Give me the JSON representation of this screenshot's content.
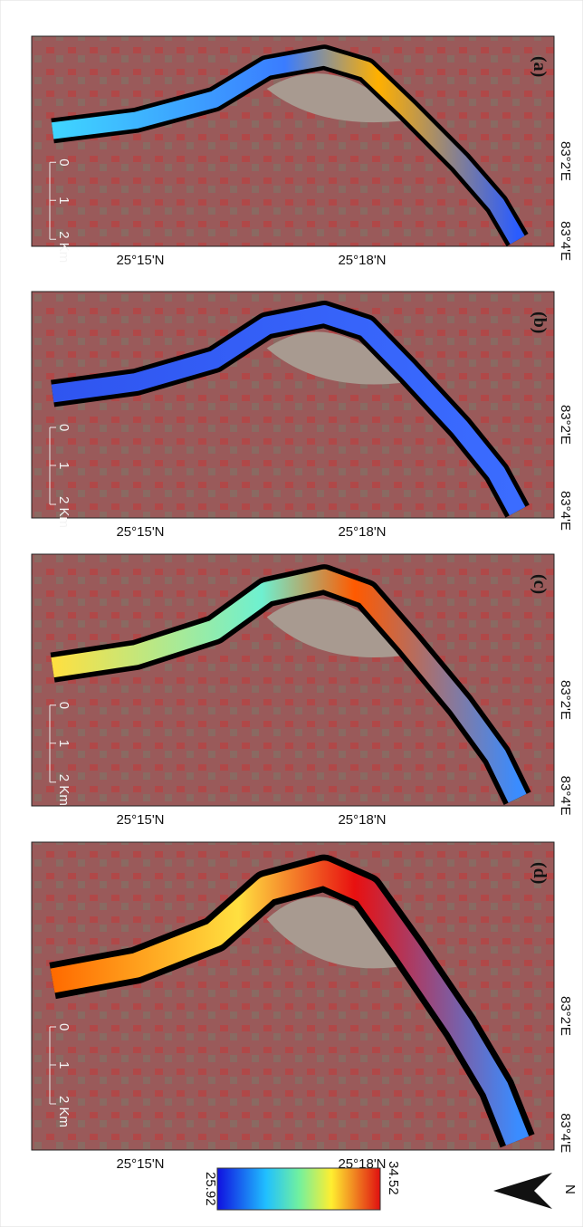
{
  "panels": [
    {
      "label": "(a)"
    },
    {
      "label": "(b)"
    },
    {
      "label": "(c)"
    },
    {
      "label": "(d)"
    }
  ],
  "latitude_labels": [
    "25°15'N",
    "25°18'N"
  ],
  "longitude_labels": [
    "83°2'E",
    "83°4'E"
  ],
  "scale_bar": [
    "0",
    "1",
    "2 Km"
  ],
  "colorbar": {
    "min": 25.92,
    "max": 34.52
  },
  "north": "N"
}
